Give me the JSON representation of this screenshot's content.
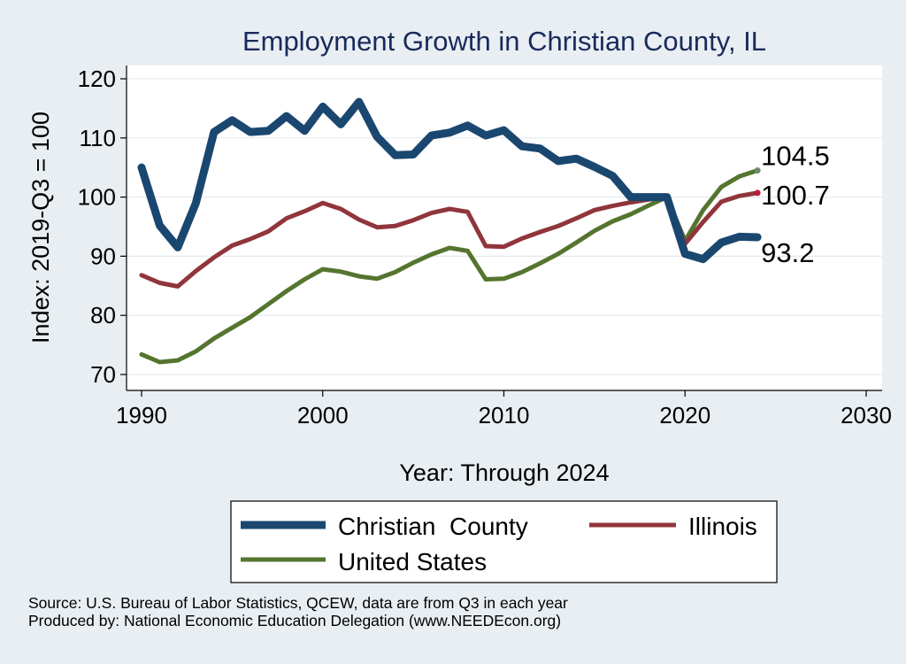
{
  "chart_data": {
    "type": "line",
    "title": "Employment Growth in Christian County, IL",
    "xlabel": "Year: Through 2024",
    "ylabel": "Index: 2019-Q3 = 100",
    "xlim": [
      1990,
      2030
    ],
    "ylim": [
      68,
      122
    ],
    "xticks": [
      1990,
      2000,
      2010,
      2020,
      2030
    ],
    "yticks": [
      70,
      80,
      90,
      100,
      110,
      120
    ],
    "grid": true,
    "legend_position": "bottom",
    "x": [
      1990,
      1991,
      1992,
      1993,
      1994,
      1995,
      1996,
      1997,
      1998,
      1999,
      2000,
      2001,
      2002,
      2003,
      2004,
      2005,
      2006,
      2007,
      2008,
      2009,
      2010,
      2011,
      2012,
      2013,
      2014,
      2015,
      2016,
      2017,
      2018,
      2019,
      2020,
      2021,
      2022,
      2023,
      2024
    ],
    "series": [
      {
        "name": "Christian  County",
        "color": "#1a476f",
        "values": [
          105,
          95.2,
          91.5,
          99,
          111,
          113,
          111,
          111.2,
          113.7,
          111.2,
          115.3,
          112.3,
          116.1,
          110.2,
          107.1,
          107.2,
          110.4,
          110.9,
          112.1,
          110.4,
          111.3,
          108.6,
          108.2,
          106.1,
          106.5,
          105.1,
          103.6,
          100,
          100,
          100,
          90.4,
          89.5,
          92.3,
          93.3,
          93.2
        ],
        "end_label": "93.2"
      },
      {
        "name": "Illinois",
        "color": "#90353b",
        "values": [
          86.8,
          85.5,
          84.9,
          87.5,
          89.8,
          91.8,
          92.9,
          94.2,
          96.4,
          97.6,
          99,
          98,
          96.2,
          94.9,
          95.1,
          96.1,
          97.3,
          98,
          97.5,
          91.7,
          91.6,
          93,
          94.1,
          95.1,
          96.4,
          97.8,
          98.5,
          99.1,
          99.6,
          100,
          92.1,
          95.8,
          99.2,
          100.2,
          100.7
        ],
        "end_label": "100.7"
      },
      {
        "name": "United States",
        "color": "#55752f",
        "values": [
          73.4,
          72.1,
          72.4,
          73.9,
          76.1,
          77.9,
          79.7,
          81.9,
          84.1,
          86.1,
          87.8,
          87.4,
          86.6,
          86.2,
          87.3,
          88.9,
          90.3,
          91.4,
          90.9,
          86.1,
          86.2,
          87.3,
          88.8,
          90.4,
          92.3,
          94.3,
          95.9,
          97.1,
          98.6,
          100,
          92.6,
          97.8,
          101.7,
          103.5,
          104.5
        ],
        "end_label": "104.5"
      }
    ]
  },
  "source_line_1": "Source: U.S. Bureau of Labor Statistics, QCEW, data are from Q3 in each year",
  "source_line_2": "Produced by: National Economic Education Delegation (www.NEEDEcon.org)"
}
